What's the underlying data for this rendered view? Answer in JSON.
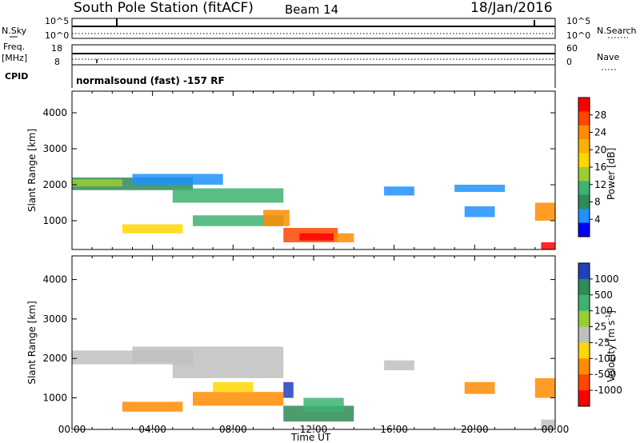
{
  "header": {
    "station": "South Pole Station (fitACF)",
    "beam": "Beam 14",
    "date": "18/Jan/2016"
  },
  "strips": {
    "nsky_label": "N.Sky",
    "nsky_ticks": [
      "10^5",
      "10^0"
    ],
    "nsearch_label": "N.Search",
    "nsearch_ticks": [
      "10^5",
      "10^0"
    ],
    "freq_label": "Freq.",
    "freq_unit": "[MHz]",
    "freq_ticks": [
      "18",
      "8"
    ],
    "nave_label": "Nave",
    "nave_ticks": [
      "60",
      "0"
    ],
    "cpid_label": "CPID",
    "cpid_text": "normalsound (fast) -157 RF"
  },
  "time_axis": {
    "label": "Time UT",
    "ticks": [
      "00:00",
      "04:00",
      "08:00",
      "12:00",
      "16:00",
      "20:00",
      "00:00"
    ]
  },
  "power_colorbar": {
    "label": "Power [dB]",
    "ticks": [
      "28",
      "24",
      "20",
      "16",
      "12",
      "8",
      "4"
    ],
    "colors": [
      "#ff0000",
      "#ff4500",
      "#ff8c00",
      "#ffb000",
      "#ffd700",
      "#9acd32",
      "#3cb371",
      "#2e8b57",
      "#1e90ff",
      "#0000ff"
    ]
  },
  "velocity_colorbar": {
    "label": "Velocity [m s",
    "label_sup": "-1",
    "label_end": "]",
    "ticks": [
      "1000",
      "500",
      "100",
      "25",
      "-25",
      "-100",
      "-500",
      "-1000"
    ],
    "colors": [
      "#2040c0",
      "#2e8b57",
      "#3cb371",
      "#9acd32",
      "#c0c0c0",
      "#ffd700",
      "#ff8c00",
      "#ff4500",
      "#ff0000"
    ]
  },
  "chart_data": [
    {
      "type": "heatmap",
      "title": "",
      "ylabel": "Slant Range [km]",
      "xlabel": "",
      "ylim": [
        200,
        4600
      ],
      "xlim": [
        0,
        24
      ],
      "yticks": [
        "1000",
        "2000",
        "3000",
        "4000"
      ],
      "colorbar": "Power [dB]",
      "regions": [
        {
          "t0": 0.0,
          "t1": 6.0,
          "r0": 1850,
          "r1": 2200,
          "color": "#2e8b57"
        },
        {
          "t0": 0.0,
          "t1": 2.5,
          "r0": 1950,
          "r1": 2150,
          "color": "#9acd32"
        },
        {
          "t0": 3.0,
          "t1": 7.5,
          "r0": 2000,
          "r1": 2300,
          "color": "#1e90ff"
        },
        {
          "t0": 5.0,
          "t1": 10.5,
          "r0": 1500,
          "r1": 1900,
          "color": "#3cb371"
        },
        {
          "t0": 2.5,
          "t1": 5.5,
          "r0": 650,
          "r1": 900,
          "color": "#ffd700"
        },
        {
          "t0": 6.0,
          "t1": 10.5,
          "r0": 850,
          "r1": 1150,
          "color": "#3cb371"
        },
        {
          "t0": 9.5,
          "t1": 10.8,
          "r0": 850,
          "r1": 1300,
          "color": "#ff8c00"
        },
        {
          "t0": 10.5,
          "t1": 13.2,
          "r0": 400,
          "r1": 800,
          "color": "#ff4500"
        },
        {
          "t0": 11.3,
          "t1": 13.0,
          "r0": 450,
          "r1": 650,
          "color": "#ff0000"
        },
        {
          "t0": 13.0,
          "t1": 14.0,
          "r0": 400,
          "r1": 650,
          "color": "#ff8c00"
        },
        {
          "t0": 15.5,
          "t1": 17.0,
          "r0": 1700,
          "r1": 1950,
          "color": "#1e90ff"
        },
        {
          "t0": 19.5,
          "t1": 21.0,
          "r0": 1100,
          "r1": 1400,
          "color": "#1e90ff"
        },
        {
          "t0": 19.0,
          "t1": 21.5,
          "r0": 1800,
          "r1": 2000,
          "color": "#1e90ff"
        },
        {
          "t0": 23.0,
          "t1": 24.0,
          "r0": 1000,
          "r1": 1500,
          "color": "#ff8c00"
        },
        {
          "t0": 23.3,
          "t1": 24.0,
          "r0": 200,
          "r1": 400,
          "color": "#ff0000"
        }
      ]
    },
    {
      "type": "heatmap",
      "title": "",
      "ylabel": "Slant Range [km]",
      "xlabel": "Time UT",
      "ylim": [
        200,
        4600
      ],
      "xlim": [
        0,
        24
      ],
      "yticks": [
        "1000",
        "2000",
        "3000",
        "4000"
      ],
      "colorbar": "Velocity [m s-1]",
      "regions": [
        {
          "t0": 0.0,
          "t1": 6.0,
          "r0": 1850,
          "r1": 2200,
          "color": "#c0c0c0"
        },
        {
          "t0": 3.0,
          "t1": 10.5,
          "r0": 1900,
          "r1": 2300,
          "color": "#c0c0c0"
        },
        {
          "t0": 5.0,
          "t1": 10.5,
          "r0": 1500,
          "r1": 1900,
          "color": "#c0c0c0"
        },
        {
          "t0": 2.5,
          "t1": 5.5,
          "r0": 650,
          "r1": 900,
          "color": "#ff8c00"
        },
        {
          "t0": 6.0,
          "t1": 10.5,
          "r0": 800,
          "r1": 1150,
          "color": "#ff8c00"
        },
        {
          "t0": 7.0,
          "t1": 9.0,
          "r0": 1150,
          "r1": 1400,
          "color": "#ffd700"
        },
        {
          "t0": 10.5,
          "t1": 11.0,
          "r0": 1000,
          "r1": 1400,
          "color": "#2040c0"
        },
        {
          "t0": 10.5,
          "t1": 14.0,
          "r0": 400,
          "r1": 800,
          "color": "#2e8b57"
        },
        {
          "t0": 11.5,
          "t1": 13.5,
          "r0": 650,
          "r1": 1000,
          "color": "#3cb371"
        },
        {
          "t0": 15.5,
          "t1": 17.0,
          "r0": 1700,
          "r1": 1950,
          "color": "#c0c0c0"
        },
        {
          "t0": 19.5,
          "t1": 21.0,
          "r0": 1100,
          "r1": 1400,
          "color": "#ff8c00"
        },
        {
          "t0": 23.0,
          "t1": 24.0,
          "r0": 1000,
          "r1": 1500,
          "color": "#ff8c00"
        },
        {
          "t0": 23.3,
          "t1": 24.0,
          "r0": 200,
          "r1": 450,
          "color": "#c0c0c0"
        }
      ]
    }
  ]
}
